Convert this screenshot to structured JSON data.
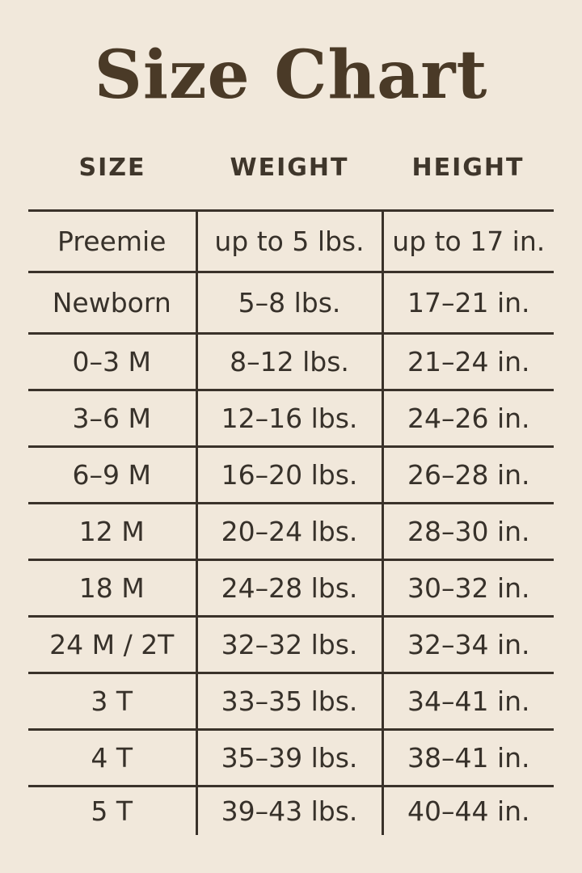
{
  "title": "Size Chart",
  "colors": {
    "background": "#f1e8db",
    "title_text": "#4a3a27",
    "body_text": "#37312a",
    "grid_line": "#3a322a"
  },
  "chart_data": {
    "type": "table",
    "title": "Size Chart",
    "columns": [
      "SIZE",
      "WEIGHT",
      "HEIGHT"
    ],
    "rows": [
      [
        "Preemie",
        "up to 5 lbs.",
        "up to 17 in."
      ],
      [
        "Newborn",
        "5–8 lbs.",
        "17–21 in."
      ],
      [
        "0–3 M",
        "8–12 lbs.",
        "21–24 in."
      ],
      [
        "3–6 M",
        "12–16 lbs.",
        "24–26 in."
      ],
      [
        "6–9 M",
        "16–20 lbs.",
        "26–28 in."
      ],
      [
        "12 M",
        "20–24 lbs.",
        "28–30 in."
      ],
      [
        "18 M",
        "24–28 lbs.",
        "30–32 in."
      ],
      [
        "24 M / 2T",
        "32–32 lbs.",
        "32–34 in."
      ],
      [
        "3 T",
        "33–35 lbs.",
        "34–41 in."
      ],
      [
        "4 T",
        "35–39 lbs.",
        "38–41 in."
      ],
      [
        "5 T",
        "39–43 lbs.",
        "40–44 in."
      ]
    ],
    "layout": {
      "grid": "horizontal rules above every row, vertical rules flanking middle column, no outer side borders, no bottom border"
    }
  }
}
